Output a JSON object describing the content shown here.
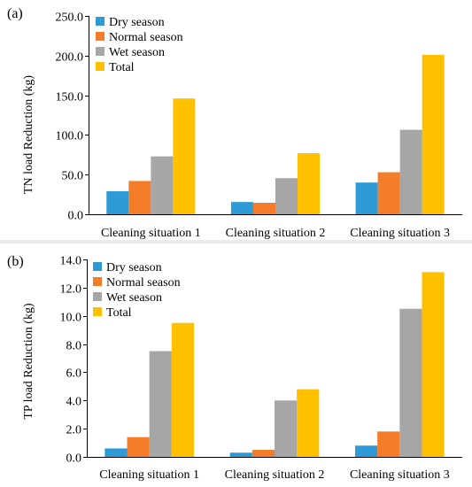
{
  "chart_data": [
    {
      "type": "bar",
      "panel_label": "(a)",
      "title": "",
      "xlabel": "",
      "ylabel": "TN load Reduction  (kg)",
      "ylim": [
        0,
        250
      ],
      "yticks": [
        "0.0",
        "50.0",
        "100.0",
        "150.0",
        "200.0",
        "250.0"
      ],
      "categories": [
        "Cleaning situation 1",
        "Cleaning situation 2",
        "Cleaning situation 3"
      ],
      "series": [
        {
          "name": "Dry season",
          "color": "#2e9bd6",
          "values": [
            29.0,
            15.5,
            40.0
          ]
        },
        {
          "name": "Normal season",
          "color": "#f57c28",
          "values": [
            42.0,
            14.5,
            53.0
          ]
        },
        {
          "name": "Wet season",
          "color": "#a6a6a6",
          "values": [
            73.0,
            45.5,
            106.5
          ]
        },
        {
          "name": "Total",
          "color": "#ffc000",
          "values": [
            146.0,
            77.0,
            201.0
          ]
        }
      ],
      "legend": "top-left"
    },
    {
      "type": "bar",
      "panel_label": "(b)",
      "title": "",
      "xlabel": "",
      "ylabel": "TP load Reduction  (kg)",
      "ylim": [
        0,
        14
      ],
      "yticks": [
        "0.0",
        "2.0",
        "4.0",
        "6.0",
        "8.0",
        "10.0",
        "12.0",
        "14.0"
      ],
      "categories": [
        "Cleaning situation 1",
        "Cleaning situation 2",
        "Cleaning situation 3"
      ],
      "series": [
        {
          "name": "Dry season",
          "color": "#2e9bd6",
          "values": [
            0.6,
            0.3,
            0.8
          ]
        },
        {
          "name": "Normal season",
          "color": "#f57c28",
          "values": [
            1.4,
            0.5,
            1.8
          ]
        },
        {
          "name": "Wet season",
          "color": "#a6a6a6",
          "values": [
            7.5,
            4.0,
            10.5
          ]
        },
        {
          "name": "Total",
          "color": "#ffc000",
          "values": [
            9.5,
            4.8,
            13.1
          ]
        }
      ],
      "legend": "top-left"
    }
  ]
}
